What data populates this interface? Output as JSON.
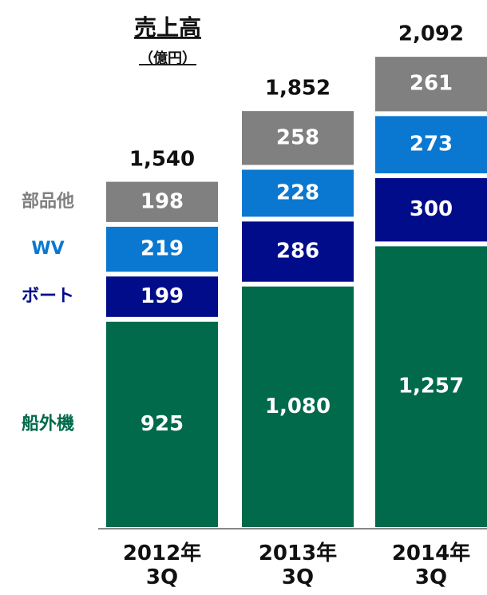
{
  "chart_data": {
    "type": "stacked_bar",
    "title": "売上高",
    "subtitle": "（億円）",
    "categories": [
      "2012年\n3Q",
      "2013年\n3Q",
      "2014年\n3Q"
    ],
    "series": [
      {
        "name": "船外機",
        "color": "#006a4a",
        "values": [
          925,
          1080,
          1257
        ],
        "value_labels": [
          "925",
          "1,080",
          "1,257"
        ]
      },
      {
        "name": "ボート",
        "color": "#000c8a",
        "values": [
          199,
          286,
          300
        ]
      },
      {
        "name": "WV",
        "color": "#0a78d0",
        "values": [
          219,
          228,
          273
        ]
      },
      {
        "name": "部品他",
        "color": "#808080",
        "values": [
          198,
          258,
          261
        ]
      }
    ],
    "totals": [
      1540,
      1852,
      2092
    ],
    "total_labels": [
      "1,540",
      "1,852",
      "2,092"
    ]
  }
}
